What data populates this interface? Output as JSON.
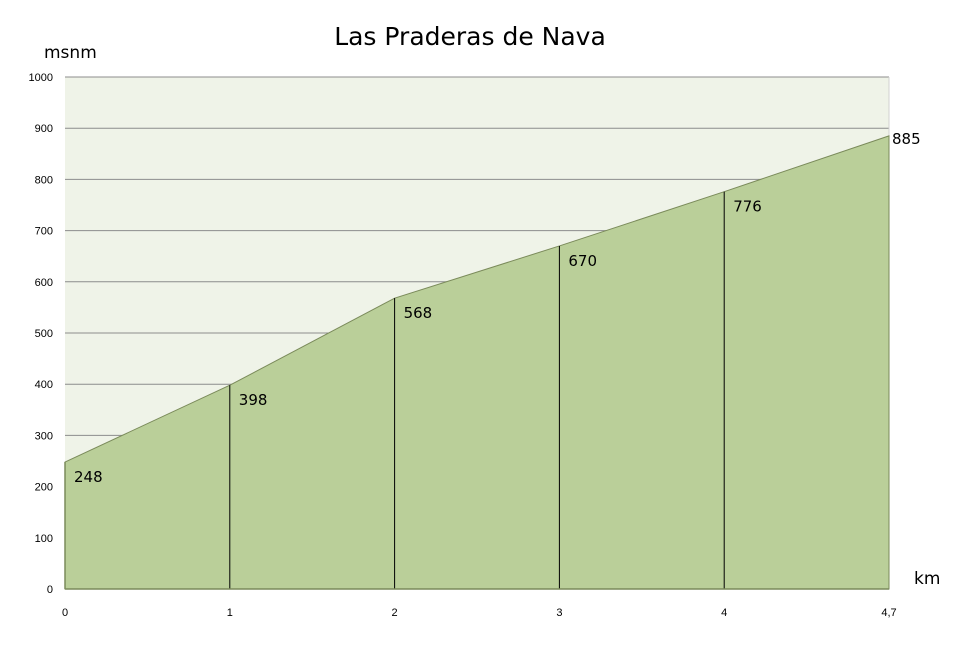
{
  "chart_data": {
    "type": "area",
    "title": "Las Praderas  de Nava",
    "ylabel": "msnm",
    "xlabel": "km",
    "categories": [
      "0",
      "1",
      "2",
      "3",
      "4",
      "4,7"
    ],
    "values": [
      248,
      398,
      568,
      670,
      776,
      885
    ],
    "data_labels": [
      "248",
      "398",
      "568",
      "670",
      "776",
      "885"
    ],
    "ylim": [
      0,
      1000
    ],
    "yticks": [
      "0",
      "100",
      "200",
      "300",
      "400",
      "500",
      "600",
      "700",
      "800",
      "900",
      "1000"
    ],
    "grid": true,
    "legend": "none",
    "colors": {
      "fill": "#bacf99",
      "outline": "#7a8a5a",
      "plot_bg": "#eff3e8",
      "grid": "#8c8c8c",
      "drop_lines": "#000000"
    }
  }
}
